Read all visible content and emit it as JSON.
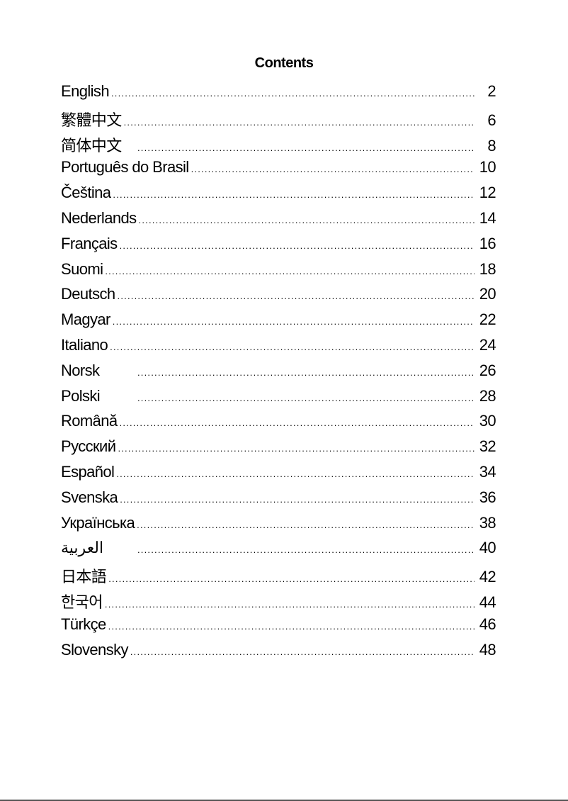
{
  "title": "Contents",
  "entries": [
    {
      "label": "English",
      "page": "2"
    },
    {
      "label": "繁體中文",
      "page": "6"
    },
    {
      "label": "简体中文",
      "page": "8"
    },
    {
      "label": "Português do Brasil",
      "page": "10"
    },
    {
      "label": "Čeština",
      "page": "12"
    },
    {
      "label": "Nederlands",
      "page": "14"
    },
    {
      "label": "Français",
      "page": "16"
    },
    {
      "label": "Suomi",
      "page": "18"
    },
    {
      "label": "Deutsch",
      "page": "20"
    },
    {
      "label": "Magyar",
      "page": "22"
    },
    {
      "label": "Italiano",
      "page": "24"
    },
    {
      "label": "Norsk",
      "page": "26"
    },
    {
      "label": "Polski",
      "page": "28"
    },
    {
      "label": "Română",
      "page": "30"
    },
    {
      "label": "Русский",
      "page": "32"
    },
    {
      "label": "Español",
      "page": "34"
    },
    {
      "label": "Svenska",
      "page": "36"
    },
    {
      "label": "Українська",
      "page": "38"
    },
    {
      "label": "العربية",
      "page": "40"
    },
    {
      "label": "日本語",
      "page": "42"
    },
    {
      "label": "한국어",
      "page": "44"
    },
    {
      "label": "Türkçe",
      "page": "46"
    },
    {
      "label": "Slovensky",
      "page": "48"
    }
  ]
}
